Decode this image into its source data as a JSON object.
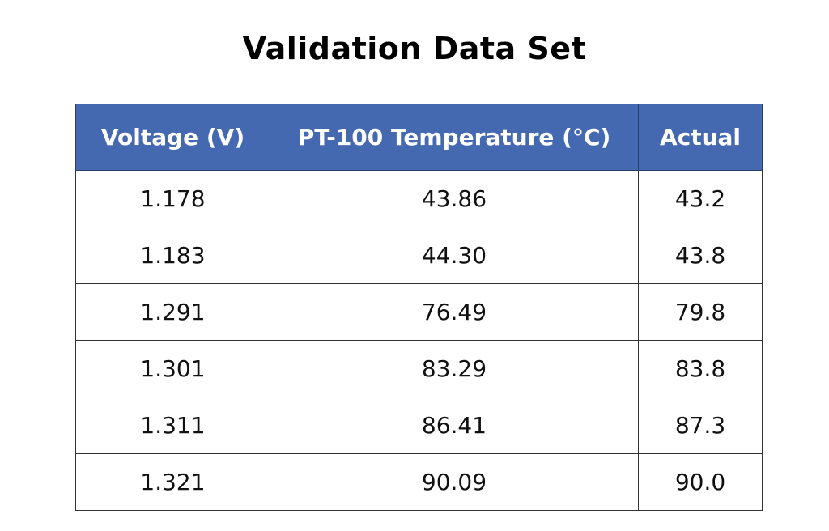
{
  "title": "Validation Data Set",
  "table": {
    "headers": [
      "Voltage (V)",
      "PT-100 Temperature (°C)",
      "Actual"
    ],
    "rows": [
      [
        "1.178",
        "43.86",
        "43.2"
      ],
      [
        "1.183",
        "44.30",
        "43.8"
      ],
      [
        "1.291",
        "76.49",
        "79.8"
      ],
      [
        "1.301",
        "83.29",
        "83.8"
      ],
      [
        "1.311",
        "86.41",
        "87.3"
      ],
      [
        "1.321",
        "90.09",
        "90.0"
      ]
    ]
  },
  "colors": {
    "header_background": "#4569b1",
    "header_text": "#ffffff",
    "border": "#333333"
  }
}
